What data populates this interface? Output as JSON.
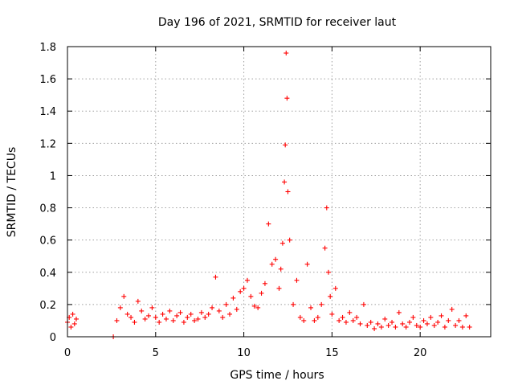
{
  "chart_data": {
    "type": "scatter",
    "title": "Day 196 of 2021, SRMTID for receiver laut",
    "xlabel": "GPS time / hours",
    "ylabel": "SRMTID / TECUs",
    "xlim": [
      0,
      24
    ],
    "ylim": [
      0,
      1.8
    ],
    "xticks": [
      0,
      5,
      10,
      15,
      20
    ],
    "xtick_labels": [
      "0",
      "5",
      "10",
      "15",
      "20"
    ],
    "yticks": [
      0,
      0.2,
      0.4,
      0.6,
      0.8,
      1.0,
      1.2,
      1.4,
      1.6,
      1.8
    ],
    "ytick_labels": [
      "0",
      "0.2",
      "0.4",
      "0.6",
      "0.8",
      "1",
      "1.2",
      "1.4",
      "1.6",
      "1.8"
    ],
    "grid": true,
    "marker": "+",
    "color": "#ff0000",
    "series": [
      {
        "name": "SRMTID",
        "x": [
          0.0,
          0.1,
          0.2,
          0.3,
          0.4,
          0.5,
          2.6,
          2.8,
          3.0,
          3.2,
          3.4,
          3.6,
          3.8,
          4.0,
          4.2,
          4.4,
          4.6,
          4.8,
          5.0,
          5.2,
          5.4,
          5.6,
          5.8,
          6.0,
          6.2,
          6.4,
          6.6,
          6.8,
          7.0,
          7.2,
          7.4,
          7.6,
          7.8,
          8.0,
          8.2,
          8.4,
          8.6,
          8.8,
          9.0,
          9.2,
          9.4,
          9.6,
          9.8,
          10.0,
          10.2,
          10.4,
          10.6,
          10.8,
          11.0,
          11.2,
          11.4,
          11.6,
          11.8,
          12.0,
          12.1,
          12.2,
          12.3,
          12.35,
          12.4,
          12.45,
          12.5,
          12.6,
          12.8,
          13.0,
          13.2,
          13.4,
          13.6,
          13.8,
          14.0,
          14.2,
          14.4,
          14.6,
          14.7,
          14.8,
          14.9,
          15.0,
          15.2,
          15.4,
          15.6,
          15.8,
          16.0,
          16.2,
          16.4,
          16.6,
          16.8,
          17.0,
          17.2,
          17.4,
          17.6,
          17.8,
          18.0,
          18.2,
          18.4,
          18.6,
          18.8,
          19.0,
          19.2,
          19.4,
          19.6,
          19.8,
          20.0,
          20.2,
          20.4,
          20.6,
          20.8,
          21.0,
          21.2,
          21.4,
          21.6,
          21.8,
          22.0,
          22.2,
          22.4,
          22.6,
          22.8
        ],
        "y": [
          0.09,
          0.12,
          0.06,
          0.14,
          0.08,
          0.11,
          0.0,
          0.1,
          0.18,
          0.25,
          0.14,
          0.12,
          0.09,
          0.22,
          0.16,
          0.11,
          0.13,
          0.18,
          0.12,
          0.09,
          0.14,
          0.11,
          0.16,
          0.1,
          0.13,
          0.15,
          0.09,
          0.12,
          0.14,
          0.1,
          0.11,
          0.15,
          0.12,
          0.14,
          0.18,
          0.37,
          0.16,
          0.12,
          0.2,
          0.14,
          0.24,
          0.17,
          0.28,
          0.3,
          0.35,
          0.25,
          0.19,
          0.18,
          0.27,
          0.33,
          0.7,
          0.45,
          0.48,
          0.3,
          0.42,
          0.58,
          0.96,
          1.19,
          1.76,
          1.48,
          0.9,
          0.6,
          0.2,
          0.35,
          0.12,
          0.1,
          0.45,
          0.18,
          0.1,
          0.12,
          0.2,
          0.55,
          0.8,
          0.4,
          0.25,
          0.14,
          0.3,
          0.1,
          0.12,
          0.09,
          0.15,
          0.1,
          0.12,
          0.08,
          0.2,
          0.07,
          0.09,
          0.05,
          0.08,
          0.06,
          0.11,
          0.07,
          0.09,
          0.06,
          0.15,
          0.08,
          0.06,
          0.09,
          0.12,
          0.07,
          0.06,
          0.1,
          0.08,
          0.12,
          0.07,
          0.09,
          0.13,
          0.06,
          0.1,
          0.17,
          0.07,
          0.1,
          0.06,
          0.13,
          0.06
        ]
      }
    ]
  }
}
